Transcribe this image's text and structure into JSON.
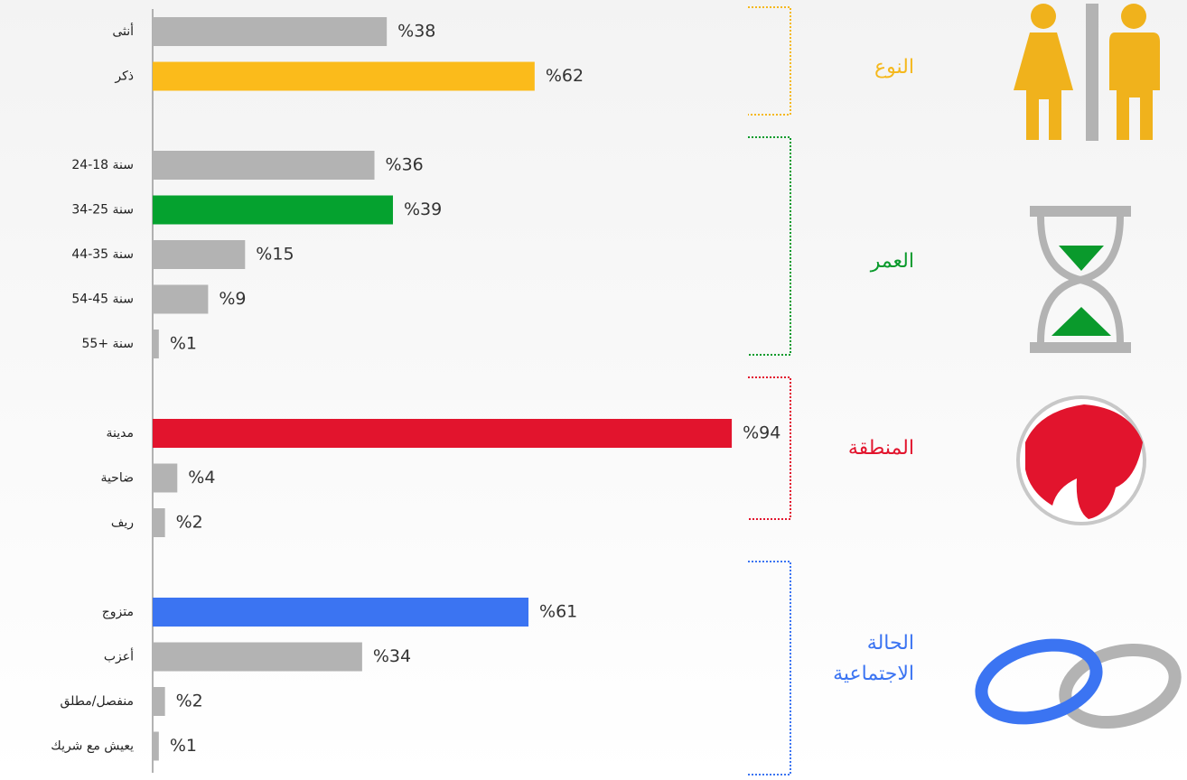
{
  "chart_data": [
    {
      "type": "bar",
      "title": [
        "النوع"
      ],
      "categories": [
        "أنثى",
        "ذكر"
      ],
      "values": [
        38,
        62
      ],
      "value_labels": [
        "%38",
        "%62"
      ],
      "colors": [
        "#b3b3b3",
        "#fbbb1b"
      ],
      "accent": "#f5b81c"
    },
    {
      "type": "bar",
      "title": [
        "العمر"
      ],
      "categories": [
        "سنة 18-24",
        "سنة 25-34",
        "سنة 35-44",
        "سنة 45-54",
        "سنة +55"
      ],
      "values": [
        36,
        39,
        15,
        9,
        1
      ],
      "value_labels": [
        "%36",
        "%39",
        "%15",
        "%9",
        "%1"
      ],
      "colors": [
        "#b3b3b3",
        "#05a22f",
        "#b3b3b3",
        "#b3b3b3",
        "#b3b3b3"
      ],
      "accent": "#0a9a2c"
    },
    {
      "type": "bar",
      "title": [
        "المنطقة"
      ],
      "categories": [
        "مدينة",
        "ضاحية",
        "ريف"
      ],
      "values": [
        94,
        4,
        2
      ],
      "value_labels": [
        "%94",
        "%4",
        "%2"
      ],
      "colors": [
        "#e2142d",
        "#b3b3b3",
        "#b3b3b3"
      ],
      "accent": "#e2142d"
    },
    {
      "type": "bar",
      "title": [
        "الحالة",
        "الاجتماعية"
      ],
      "categories": [
        "متزوج",
        "أعزب",
        "منفصل/مطلق",
        "يعيش مع شريك"
      ],
      "values": [
        61,
        34,
        2,
        1
      ],
      "value_labels": [
        "%61",
        "%34",
        "%2",
        "%1"
      ],
      "colors": [
        "#3b74f2",
        "#b3b3b3",
        "#b3b3b3",
        "#b3b3b3"
      ],
      "accent": "#3b74f2"
    }
  ]
}
